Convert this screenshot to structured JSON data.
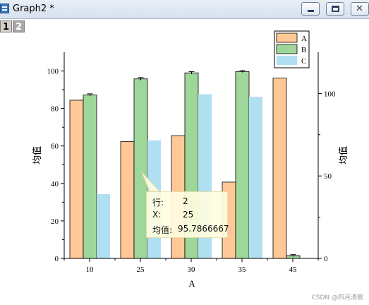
{
  "window": {
    "title": "Graph2 *"
  },
  "layers": [
    "1",
    "2"
  ],
  "chart_data": {
    "type": "bar",
    "categories": [
      "10",
      "25",
      "30",
      "35",
      "45"
    ],
    "series": [
      {
        "name": "A",
        "color": "#ffc896",
        "values": [
          84.4,
          62.3,
          65.5,
          40.7,
          96.2
        ],
        "axis": "left"
      },
      {
        "name": "B",
        "color": "#9fd79b",
        "values": [
          87.2,
          95.7866667,
          99.0,
          99.7,
          1.5
        ],
        "errors": [
          0.6,
          0.7,
          0.7,
          0.5,
          0.5
        ],
        "axis": "left"
      },
      {
        "name": "C",
        "color": "#b1dff2",
        "values": [
          39,
          71.5,
          99.5,
          98,
          null
        ],
        "axis": "right"
      }
    ],
    "xlabel": "A",
    "ylabel": "均值",
    "y2label": "均值",
    "ylim": [
      0,
      110
    ],
    "y2lim": [
      0,
      125
    ],
    "yticks": [
      0,
      20,
      40,
      60,
      80,
      100
    ],
    "y2ticks": [
      0,
      50,
      100
    ],
    "legend": [
      "A",
      "B",
      "C"
    ],
    "legend_position": "top-right"
  },
  "tooltip": {
    "rows": [
      {
        "label": "行:",
        "value": "2"
      },
      {
        "label": "X:",
        "value": "25"
      },
      {
        "label": "均值:",
        "value": "95.7866667"
      }
    ]
  },
  "watermark": "CSDN @四月清歌"
}
